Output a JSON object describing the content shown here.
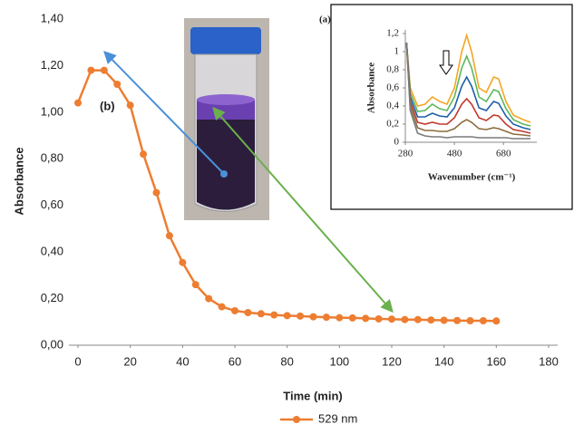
{
  "chart_data": [
    {
      "type": "line",
      "xlabel": "Time (min)",
      "ylabel": "Absorbance",
      "annotation": "(b)",
      "markers": true,
      "x": [
        0,
        5,
        10,
        15,
        20,
        25,
        30,
        35,
        40,
        45,
        50,
        55,
        60,
        65,
        70,
        75,
        80,
        85,
        90,
        95,
        100,
        105,
        110,
        115,
        120,
        125,
        130,
        135,
        140,
        145,
        150,
        155,
        160
      ],
      "series": [
        {
          "name": "529 nm",
          "color": "#ed7d31",
          "values": [
            1.04,
            1.18,
            1.18,
            1.12,
            1.03,
            0.82,
            0.655,
            0.47,
            0.355,
            0.26,
            0.2,
            0.165,
            0.148,
            0.14,
            0.135,
            0.13,
            0.127,
            0.125,
            0.122,
            0.12,
            0.118,
            0.117,
            0.115,
            0.113,
            0.112,
            0.11,
            0.11,
            0.108,
            0.107,
            0.106,
            0.105,
            0.105,
            0.104
          ]
        }
      ],
      "xlim": [
        0,
        180
      ],
      "xticks": [
        0,
        20,
        40,
        60,
        80,
        100,
        120,
        140,
        160,
        180
      ],
      "ylim": [
        0,
        1.4
      ],
      "yticks": [
        {
          "value": 0,
          "label": "0,00"
        },
        {
          "value": 0.2,
          "label": "0,20"
        },
        {
          "value": 0.4,
          "label": "0,40"
        },
        {
          "value": 0.6,
          "label": "0,60"
        },
        {
          "value": 0.8,
          "label": "0,80"
        },
        {
          "value": 1.0,
          "label": "1,00"
        },
        {
          "value": 1.2,
          "label": "1,20"
        },
        {
          "value": 1.4,
          "label": "1,40"
        }
      ],
      "grid": false,
      "legend": "bottom"
    },
    {
      "type": "line",
      "xlabel": "Wavenumber (cm⁻¹)",
      "ylabel": "Absorbance",
      "annotation": "(a)",
      "markers": false,
      "x": [
        285,
        300,
        330,
        360,
        390,
        420,
        450,
        480,
        510,
        530,
        550,
        580,
        610,
        640,
        660,
        690,
        720,
        760,
        790
      ],
      "series": [
        {
          "color": "#f5a623",
          "values": [
            1.1,
            0.6,
            0.4,
            0.42,
            0.5,
            0.45,
            0.42,
            0.6,
            1.0,
            1.18,
            1.0,
            0.6,
            0.55,
            0.72,
            0.7,
            0.45,
            0.3,
            0.25,
            0.22
          ]
        },
        {
          "color": "#5cb85c",
          "values": [
            1.1,
            0.55,
            0.34,
            0.35,
            0.42,
            0.37,
            0.35,
            0.5,
            0.82,
            0.95,
            0.82,
            0.5,
            0.45,
            0.58,
            0.56,
            0.37,
            0.25,
            0.2,
            0.18
          ]
        },
        {
          "color": "#1f5fa8",
          "values": [
            1.1,
            0.5,
            0.28,
            0.28,
            0.32,
            0.29,
            0.28,
            0.38,
            0.62,
            0.72,
            0.62,
            0.38,
            0.35,
            0.45,
            0.43,
            0.29,
            0.2,
            0.16,
            0.14
          ]
        },
        {
          "color": "#c0392b",
          "values": [
            1.1,
            0.45,
            0.22,
            0.2,
            0.22,
            0.2,
            0.2,
            0.27,
            0.42,
            0.48,
            0.42,
            0.27,
            0.24,
            0.3,
            0.29,
            0.2,
            0.14,
            0.12,
            0.1
          ]
        },
        {
          "color": "#8b6d3c",
          "values": [
            1.1,
            0.4,
            0.16,
            0.13,
            0.13,
            0.12,
            0.12,
            0.15,
            0.22,
            0.25,
            0.22,
            0.15,
            0.14,
            0.16,
            0.15,
            0.12,
            0.09,
            0.08,
            0.07
          ]
        },
        {
          "color": "#7a7a7a",
          "values": [
            1.1,
            0.35,
            0.1,
            0.07,
            0.06,
            0.06,
            0.05,
            0.06,
            0.06,
            0.06,
            0.06,
            0.05,
            0.05,
            0.05,
            0.05,
            0.05,
            0.04,
            0.04,
            0.04
          ]
        }
      ],
      "xlim": [
        280,
        790
      ],
      "xticks": [
        280,
        480,
        680
      ],
      "ylim": [
        0,
        1.2
      ],
      "yticks": [
        0,
        {
          "value": 0.2,
          "label": "0,2"
        },
        {
          "value": 0.4,
          "label": "0,4"
        },
        {
          "value": 0.6,
          "label": "0,6"
        },
        {
          "value": 0.8,
          "label": "0,8"
        },
        1,
        {
          "value": 1.2,
          "label": "1,2"
        }
      ],
      "grid": false
    }
  ]
}
